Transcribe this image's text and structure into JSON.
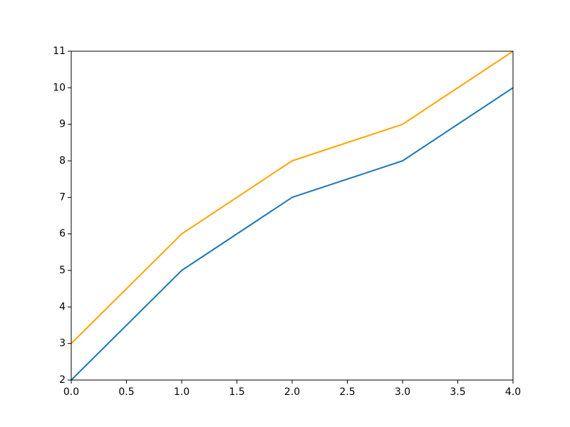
{
  "chart_data": {
    "type": "line",
    "x": [
      0,
      1,
      2,
      3,
      4
    ],
    "series": [
      {
        "color": "#1f77b4",
        "values": [
          2,
          5,
          7,
          8,
          10
        ]
      },
      {
        "color": "#ffa500",
        "values": [
          3,
          6,
          8,
          9,
          11
        ]
      }
    ],
    "xlim": [
      0,
      4
    ],
    "xticks": [
      {
        "value": 0,
        "label": "0.0"
      },
      {
        "value": 0.5,
        "label": "0.5"
      },
      {
        "value": 1,
        "label": "1.0"
      },
      {
        "value": 1.5,
        "label": "1.5"
      },
      {
        "value": 2,
        "label": "2.0"
      },
      {
        "value": 2.5,
        "label": "2.5"
      },
      {
        "value": 3,
        "label": "3.0"
      },
      {
        "value": 3.5,
        "label": "3.5"
      },
      {
        "value": 4,
        "label": "4.0"
      }
    ],
    "ylim": [
      2,
      11
    ],
    "yticks": [
      2,
      3,
      4,
      5,
      6,
      7,
      8,
      9,
      10,
      11
    ],
    "grid": false
  }
}
